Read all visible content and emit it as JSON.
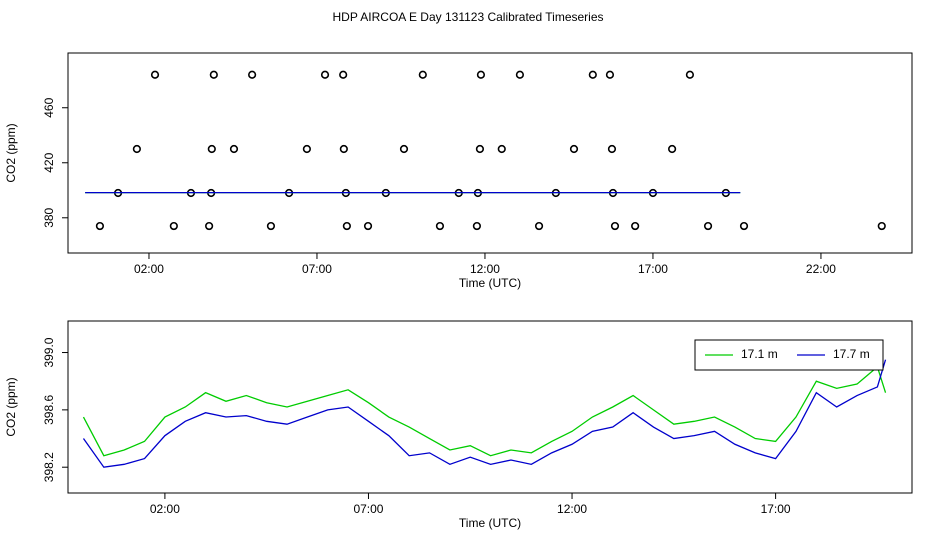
{
  "title": "HDP AIRCOA E  Day 131123  Calibrated Timeseries",
  "chart_data": [
    {
      "type": "scatter",
      "x_label": "Time (UTC)",
      "y_label": "CO2 (ppm)",
      "xlim": [
        -0.41,
        24.71
      ],
      "ylim": [
        354.4,
        499.8
      ],
      "xticks": [
        {
          "value": 2,
          "label": "02:00"
        },
        {
          "value": 7,
          "label": "07:00"
        },
        {
          "value": 12,
          "label": "12:00"
        },
        {
          "value": 17,
          "label": "17:00"
        },
        {
          "value": 22,
          "label": "22:00"
        }
      ],
      "yticks": [
        380,
        420,
        460
      ],
      "series": [
        {
          "type": "scatter",
          "color": "#000000",
          "x": [
            2.18,
            3.93,
            5.07,
            7.24,
            7.78,
            10.15,
            11.88,
            13.04,
            15.21,
            15.72,
            18.1,
            1.64,
            3.87,
            4.53,
            6.7,
            7.8,
            9.59,
            11.85,
            12.5,
            14.65,
            15.78,
            17.57,
            1.08,
            3.25,
            3.85,
            6.17,
            7.86,
            9.05,
            11.22,
            11.79,
            14.11,
            15.81,
            17.0,
            19.17,
            0.54,
            2.74,
            3.79,
            5.63,
            7.89,
            8.52,
            10.66,
            11.76,
            13.61,
            15.87,
            16.47,
            18.64,
            19.71,
            23.81
          ],
          "values": [
            484,
            484,
            484,
            484,
            484,
            484,
            484,
            484,
            484,
            484,
            484,
            430,
            430,
            430,
            430,
            430,
            430,
            430,
            430,
            430,
            430,
            430,
            398,
            398,
            398,
            398,
            398,
            398,
            398,
            398,
            398,
            398,
            398,
            398,
            374,
            374,
            374,
            374,
            374,
            374,
            374,
            374,
            374,
            374,
            374,
            374,
            374,
            374
          ]
        },
        {
          "type": "line",
          "color": "#00cc00",
          "x": [
            0.1,
            19.6
          ],
          "values": [
            398.3,
            398.3
          ]
        },
        {
          "type": "line",
          "color": "#0000cc",
          "x": [
            0.1,
            19.6
          ],
          "values": [
            398.3,
            398.3
          ]
        }
      ]
    },
    {
      "type": "line",
      "x_label": "Time (UTC)",
      "y_label": "CO2 (ppm)",
      "xlim": [
        -0.38,
        20.35
      ],
      "ylim": [
        398.02,
        399.22
      ],
      "xticks": [
        {
          "value": 2,
          "label": "02:00"
        },
        {
          "value": 7,
          "label": "07:00"
        },
        {
          "value": 12,
          "label": "12:00"
        },
        {
          "value": 17,
          "label": "17:00"
        }
      ],
      "yticks": [
        398.2,
        398.6,
        {
          "value": 399,
          "label": "399.0"
        }
      ],
      "legend": "top-right",
      "x": [
        0,
        0.5,
        1,
        1.5,
        2,
        2.5,
        3,
        3.5,
        4,
        4.5,
        5,
        5.5,
        6,
        6.5,
        7,
        7.5,
        8,
        8.5,
        9,
        9.5,
        10,
        10.5,
        11,
        11.5,
        12,
        12.5,
        13,
        13.5,
        14,
        14.5,
        15,
        15.5,
        16,
        16.5,
        17,
        17.5,
        18,
        18.5,
        19,
        19.5,
        19.7
      ],
      "series": [
        {
          "name": "17.1 m",
          "color": "#00cc00",
          "values": [
            398.55,
            398.28,
            398.32,
            398.38,
            398.55,
            398.62,
            398.72,
            398.66,
            398.7,
            398.65,
            398.62,
            398.66,
            398.7,
            398.74,
            398.65,
            398.55,
            398.48,
            398.4,
            398.32,
            398.35,
            398.28,
            398.32,
            398.3,
            398.38,
            398.45,
            398.55,
            398.62,
            398.7,
            398.6,
            398.5,
            398.52,
            398.55,
            398.48,
            398.4,
            398.38,
            398.55,
            398.8,
            398.75,
            398.78,
            398.9,
            398.72
          ]
        },
        {
          "name": "17.7 m",
          "color": "#0000cc",
          "values": [
            398.4,
            398.2,
            398.22,
            398.26,
            398.42,
            398.52,
            398.58,
            398.55,
            398.56,
            398.52,
            398.5,
            398.55,
            398.6,
            398.62,
            398.52,
            398.42,
            398.28,
            398.3,
            398.22,
            398.27,
            398.22,
            398.25,
            398.22,
            398.3,
            398.36,
            398.45,
            398.48,
            398.58,
            398.48,
            398.4,
            398.42,
            398.45,
            398.36,
            398.3,
            398.26,
            398.45,
            398.72,
            398.62,
            398.7,
            398.76,
            398.95
          ]
        }
      ]
    }
  ]
}
